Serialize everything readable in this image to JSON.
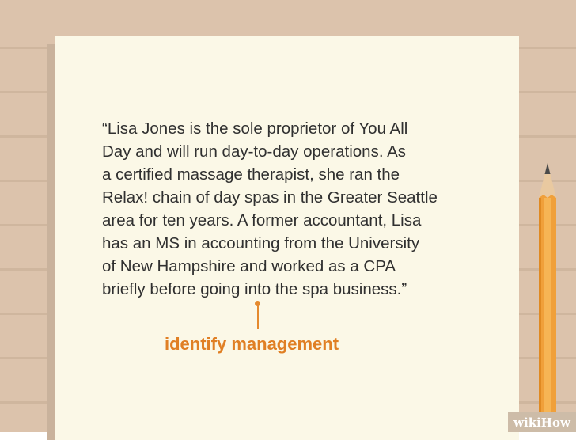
{
  "quote": {
    "lines": [
      "“Lisa Jones is the sole proprietor of You All",
      "Day and will run day-to-day operations. As",
      "a certified massage therapist, she ran the",
      "Relax! chain of day spas in the Greater Seattle",
      "area for ten years. A former accountant, Lisa",
      "has an MS in accounting from the University",
      "of New Hampshire and worked as a CPA",
      "briefly before going into the spa business.”"
    ]
  },
  "annotation": {
    "label": "identify management"
  },
  "watermark": {
    "text": "wikiHow"
  },
  "colors": {
    "background": "#dcc3ac",
    "paper": "#fbf8e7",
    "text": "#303030",
    "accent": "#e07f24",
    "pencil_body": "#f0a03a",
    "pencil_wood": "#e9c9a0"
  },
  "icons": {
    "pencil": "pencil-icon",
    "pointer": "pointer-line"
  }
}
